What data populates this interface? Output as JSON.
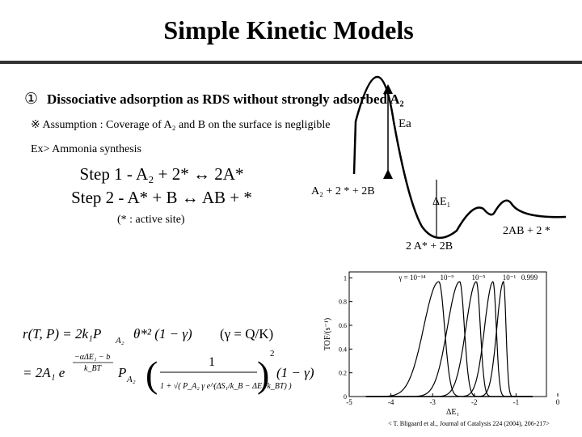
{
  "header": {
    "title": "Simple Kinetic Models"
  },
  "item": {
    "number": "①",
    "heading": "Dissociative adsorption as RDS without strongly adsorbed A₂"
  },
  "assumption": "※ Assumption : Coverage of A₂ and B on the surface is negligible",
  "example": "Ex> Ammonia synthesis",
  "steps": [
    "Step 1 - A₂ + 2* ↔ 2A*",
    "Step 2 - A* + B ↔ AB + *"
  ],
  "note": "(* : active site)",
  "energy_diagram": {
    "barrier": "Ea",
    "initial": "A₂ + 2 * + 2B",
    "delta": "ΔE₁",
    "intermediate": "2 A* + 2B",
    "final": "2AB + 2 *"
  },
  "equations": {
    "rate_lhs": "r(T, P) = 2k₁P",
    "rate_sub": "A₂",
    "rate_rest": "θ*² (1 − γ)",
    "gamma_def": "(γ = Q/K)",
    "line2_start": "= 2A₁ e",
    "line2_exp": "−αΔE₁ − b",
    "line2_exp_den": "k_BT",
    "line2_p": "P",
    "line2_p_sub": "A₂",
    "frac_num": "1",
    "frac_den": "1 + √( P_A₂ γ e^(ΔS₁/k_B − ΔE₁/k_BT) )",
    "power": "2",
    "tail": "(1 − γ)"
  },
  "figure": {
    "y_label": "TOF/(s⁻¹)",
    "x_label": "ΔE₁",
    "xlim": [
      -5,
      0
    ],
    "ylim": [
      0,
      1.05
    ],
    "xticks": [
      -5,
      -4,
      -3,
      -2,
      -1,
      0
    ],
    "yticks": [
      0,
      0.2,
      0.4,
      0.6,
      0.8,
      1
    ],
    "gamma_labels": [
      "γ = 10⁻¹⁴",
      "10⁻⁹",
      "10⁻⁵",
      "10⁻¹",
      "0.999"
    ]
  },
  "citation": "< T. Bligaard et al., Journal of Catalysis 224 (2004), 206-217>"
}
